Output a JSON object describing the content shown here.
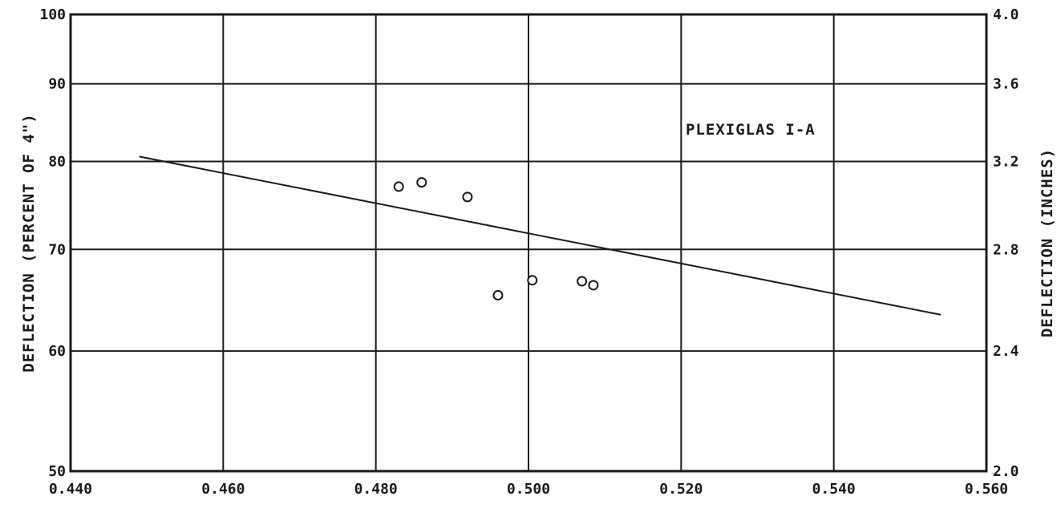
{
  "chart_data": {
    "type": "scatter",
    "title": "",
    "annotation": "PLEXIGLAS I-A",
    "xlabel": "",
    "ylabel": "DEFLECTION (PERCENT OF 4\")",
    "y2label": "DEFLECTION (INCHES)",
    "xlim": [
      0.44,
      0.56
    ],
    "ylim": [
      50,
      100
    ],
    "y2lim": [
      2.0,
      4.0
    ],
    "y_scale": "log",
    "grid": true,
    "x_ticks": [
      "0.440",
      "0.460",
      "0.480",
      "0.500",
      "0.520",
      "0.540",
      "0.560"
    ],
    "x_tick_values": [
      0.44,
      0.46,
      0.48,
      0.5,
      0.52,
      0.54,
      0.56
    ],
    "y_ticks": [
      "50",
      "60",
      "70",
      "80",
      "90",
      "100"
    ],
    "y_tick_values": [
      50,
      60,
      70,
      80,
      90,
      100
    ],
    "y2_ticks": [
      "2.0",
      "2.4",
      "2.8",
      "3.2",
      "3.6",
      "4.0"
    ],
    "y2_tick_values": [
      2.0,
      2.4,
      2.8,
      3.2,
      3.6,
      4.0
    ],
    "series": [
      {
        "type": "scatter",
        "marker": "open-circle",
        "points": [
          {
            "x": 0.483,
            "y": 77.0
          },
          {
            "x": 0.486,
            "y": 77.5
          },
          {
            "x": 0.492,
            "y": 75.8
          },
          {
            "x": 0.496,
            "y": 65.3
          },
          {
            "x": 0.5005,
            "y": 66.8
          },
          {
            "x": 0.507,
            "y": 66.7
          },
          {
            "x": 0.5085,
            "y": 66.3
          }
        ]
      },
      {
        "type": "line",
        "points": [
          {
            "x": 0.449,
            "y": 80.6
          },
          {
            "x": 0.554,
            "y": 63.4
          }
        ]
      }
    ]
  }
}
